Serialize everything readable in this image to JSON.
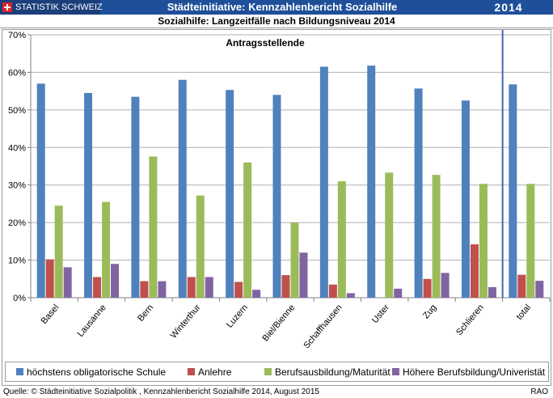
{
  "header": {
    "logo_text": "STATISTIK SCHWEIZ",
    "report_title": "Städteinitiative: Kennzahlenbericht Sozialhilfe",
    "year": "2014"
  },
  "colors": {
    "header_bg": "#1f4f99",
    "series": [
      "#4f81bd",
      "#c0504d",
      "#9bbb59",
      "#8064a2"
    ]
  },
  "chart_data": {
    "type": "bar",
    "title": "Sozialhilfe: Langzeitfälle nach Bildungsniveau 2014",
    "annotation": "Antragsstellende",
    "ylim": [
      0,
      70
    ],
    "yticks": [
      0,
      10,
      20,
      30,
      40,
      50,
      60,
      70
    ],
    "ytick_labels": [
      "0%",
      "10%",
      "20%",
      "30%",
      "40%",
      "50%",
      "60%",
      "70%"
    ],
    "grid": true,
    "legend_position": "bottom",
    "categories": [
      "Basel",
      "Lausanne",
      "Bern",
      "Winterthur",
      "Luzern",
      "Biel/Bienne",
      "Schaffhausen",
      "Uster",
      "Zug",
      "Schlieren",
      "total"
    ],
    "separator_before": "total",
    "series": [
      {
        "name": "höchstens obligatorische Schule",
        "values": [
          57.0,
          54.5,
          53.5,
          58.0,
          55.3,
          54.0,
          61.5,
          61.8,
          55.7,
          52.5,
          56.8
        ]
      },
      {
        "name": "Anlehre",
        "values": [
          10.2,
          5.5,
          4.4,
          5.5,
          4.2,
          6.0,
          3.5,
          0.0,
          5.0,
          14.2,
          6.1
        ]
      },
      {
        "name": "Berufsausbildung/Maturität",
        "values": [
          24.5,
          25.5,
          37.6,
          27.2,
          36.0,
          20.0,
          31.0,
          33.3,
          32.7,
          30.3,
          30.3
        ]
      },
      {
        "name": "Höhere Berufsbildung/Univeristät",
        "values": [
          8.1,
          9.0,
          4.4,
          5.5,
          2.1,
          12.0,
          1.2,
          2.4,
          6.6,
          2.8,
          4.5
        ]
      }
    ]
  },
  "footer": {
    "source": "Quelle: © Städteinitiative Sozialpolitik , Kennzahlenbericht Sozialhilfe 2014, August 2015",
    "code": "RAO"
  }
}
